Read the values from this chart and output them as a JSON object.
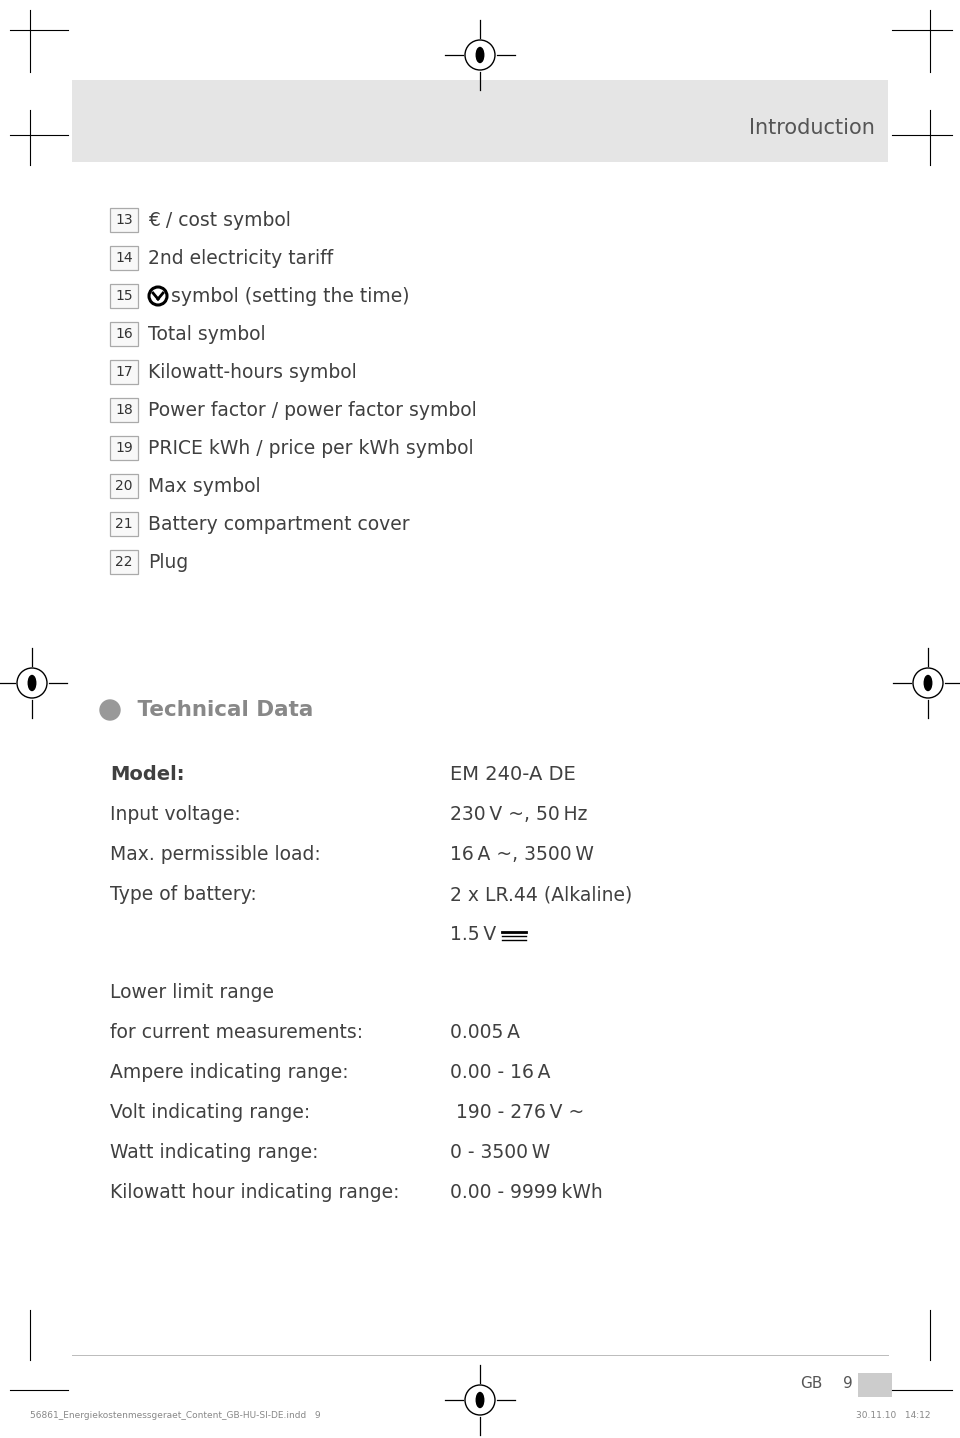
{
  "bg_color": "#ffffff",
  "header_bg_color": "#e5e5e5",
  "header_text": "Introduction",
  "header_text_color": "#555555",
  "numbered_items": [
    {
      "num": "13",
      "text": "€ / cost symbol"
    },
    {
      "num": "14",
      "text": "2nd electricity tariff"
    },
    {
      "num": "15",
      "text": "symbol (setting the time)",
      "has_symbol": true
    },
    {
      "num": "16",
      "text": "Total symbol"
    },
    {
      "num": "17",
      "text": "Kilowatt-hours symbol"
    },
    {
      "num": "18",
      "text": "Power factor / power factor symbol"
    },
    {
      "num": "19",
      "text": "PRICE kWh / price per kWh symbol"
    },
    {
      "num": "20",
      "text": "Max symbol"
    },
    {
      "num": "21",
      "text": "Battery compartment cover"
    },
    {
      "num": "22",
      "text": "Plug"
    }
  ],
  "tech_data": [
    {
      "label": "Model:",
      "value": "EM 240-A DE",
      "label_bold": true,
      "gap_before": false
    },
    {
      "label": "Input voltage:",
      "value": "230 V ~, 50 Hz",
      "label_bold": false,
      "gap_before": false
    },
    {
      "label": "Max. permissible load:",
      "value": "16 A ~, 3500 W",
      "label_bold": false,
      "gap_before": false
    },
    {
      "label": "Type of battery:",
      "value": "2 x LR.44 (Alkaline)",
      "label_bold": false,
      "gap_before": false
    },
    {
      "label": "",
      "value": "1.5 V",
      "label_bold": false,
      "gap_before": false,
      "dc_symbol": true
    },
    {
      "label": "Lower limit range",
      "value": "",
      "label_bold": false,
      "gap_before": true
    },
    {
      "label": "for current measurements:",
      "value": "0.005 A",
      "label_bold": false,
      "gap_before": false
    },
    {
      "label": "Ampere indicating range:",
      "value": "0.00 - 16 A",
      "label_bold": false,
      "gap_before": false
    },
    {
      "label": "Volt indicating range:",
      "value": " 190 - 276 V ~",
      "label_bold": false,
      "gap_before": false
    },
    {
      "label": "Watt indicating range:",
      "value": "0 - 3500 W",
      "label_bold": false,
      "gap_before": false
    },
    {
      "label": "Kilowatt hour indicating range:",
      "value": "0.00 - 9999 kWh",
      "label_bold": false,
      "gap_before": false
    }
  ],
  "footer_small_left": "56861_Energiekostenmessgeraet_Content_GB-HU-SI-DE.indd   9",
  "footer_small_right": "30.11.10   14:12",
  "text_color": "#404040",
  "light_text_color": "#555555",
  "box_edge_color": "#aaaaaa",
  "box_fill": "#f8f8f8"
}
